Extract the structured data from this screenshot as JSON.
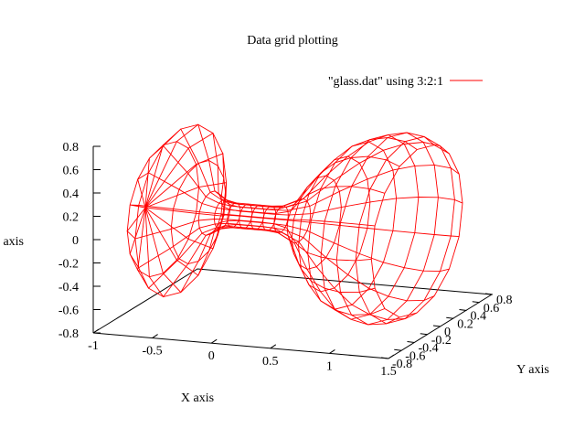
{
  "chart_data": {
    "type": "surface-3d",
    "style": "wireframe mesh",
    "title": "Data grid plotting",
    "xlabel": "X axis",
    "ylabel": "Y axis",
    "zlabel": "Z axis",
    "legend": {
      "position": "top-right",
      "entries": [
        {
          "name": "\"glass.dat\" using 3:2:1",
          "color": "#ff0000"
        }
      ]
    },
    "xlim": [
      -1,
      1.5
    ],
    "ylim": [
      -0.8,
      0.8
    ],
    "zlim": [
      -0.8,
      0.8
    ],
    "x_ticks": [
      "-1",
      "-0.5",
      "0",
      "0.5",
      "1",
      "1.5"
    ],
    "y_ticks": [
      "-0.8",
      "-0.6",
      "-0.4",
      "-0.2",
      "0",
      "0.2",
      "0.4",
      "0.6",
      "0.8"
    ],
    "z_ticks": [
      "0.8",
      "0.6",
      "0.4",
      "0.2",
      "0",
      "-0.2",
      "-0.4",
      "-0.6",
      "-0.8"
    ],
    "z_tick_values": [
      0.8,
      0.6,
      0.4,
      0.2,
      0,
      -0.2,
      -0.4,
      -0.6,
      -0.8
    ],
    "x_tick_values": [
      -1,
      -0.5,
      0,
      0.5,
      1,
      1.5
    ],
    "y_tick_values": [
      -0.8,
      -0.6,
      -0.4,
      -0.2,
      0,
      0.2,
      0.4,
      0.6,
      0.8
    ],
    "grid": false,
    "surface": {
      "shape": "glass (surface of revolution about the X axis)",
      "profile_x": [
        -1.0,
        -0.85,
        -0.7,
        -0.55,
        -0.45,
        -0.35,
        -0.25,
        -0.15,
        -0.05,
        0.05,
        0.15,
        0.3,
        0.45,
        0.6,
        0.75,
        0.9,
        1.05,
        1.2,
        1.3
      ],
      "profile_radius": [
        0.0,
        0.55,
        0.7,
        0.42,
        0.18,
        0.12,
        0.1,
        0.1,
        0.1,
        0.1,
        0.11,
        0.18,
        0.38,
        0.55,
        0.68,
        0.75,
        0.78,
        0.76,
        0.7
      ],
      "angular_steps": 16
    }
  }
}
